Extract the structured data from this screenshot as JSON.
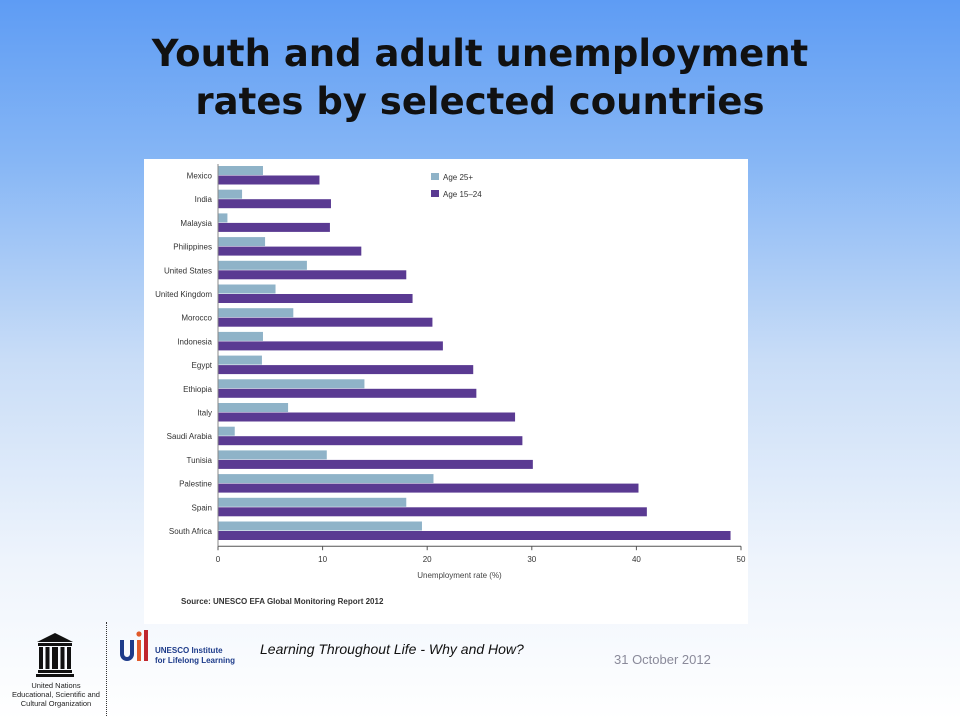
{
  "slide": {
    "title_line1": "Youth and adult unemployment",
    "title_line2": "rates by  selected countries"
  },
  "footer": {
    "caption": "Learning Throughout Life - Why and How?",
    "date": "31 October 2012",
    "unesco_text": [
      "United Nations",
      "Educational, Scientific and",
      "Cultural Organization"
    ],
    "uil_text": [
      "UNESCO Institute",
      "for Lifelong Learning"
    ]
  },
  "colors": {
    "age25": "#8fb3c8",
    "age15": "#5a3a92"
  },
  "chart_data": {
    "type": "bar",
    "orientation": "horizontal",
    "categories": [
      "Mexico",
      "India",
      "Malaysia",
      "Philippines",
      "United States",
      "United Kingdom",
      "Morocco",
      "Indonesia",
      "Egypt",
      "Ethiopia",
      "Italy",
      "Saudi Arabia",
      "Tunisia",
      "Palestine",
      "Spain",
      "South Africa"
    ],
    "series": [
      {
        "name": "Age 25+",
        "values": [
          4.3,
          2.3,
          0.9,
          4.5,
          8.5,
          5.5,
          7.2,
          4.3,
          4.2,
          14,
          6.7,
          1.6,
          10.4,
          20.6,
          18,
          19.5
        ]
      },
      {
        "name": "Age 15–24",
        "values": [
          9.7,
          10.8,
          10.7,
          13.7,
          18,
          18.6,
          20.5,
          21.5,
          24.4,
          24.7,
          28.4,
          29.1,
          30.1,
          40.2,
          41,
          49
        ]
      }
    ],
    "xlabel": "Unemployment rate (%)",
    "xlim": [
      0,
      50
    ],
    "xticks": [
      "0",
      "10",
      "20",
      "30",
      "40",
      "50"
    ],
    "legend_position": "top-right",
    "source": "Source: UNESCO EFA Global Monitoring Report 2012",
    "grid": false
  }
}
